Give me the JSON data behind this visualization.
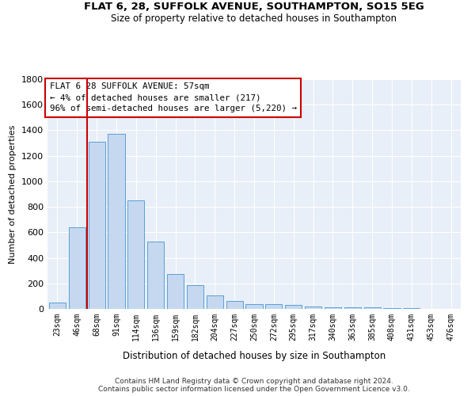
{
  "title1": "FLAT 6, 28, SUFFOLK AVENUE, SOUTHAMPTON, SO15 5EG",
  "title2": "Size of property relative to detached houses in Southampton",
  "xlabel": "Distribution of detached houses by size in Southampton",
  "ylabel": "Number of detached properties",
  "categories": [
    "23sqm",
    "46sqm",
    "68sqm",
    "91sqm",
    "114sqm",
    "136sqm",
    "159sqm",
    "182sqm",
    "204sqm",
    "227sqm",
    "250sqm",
    "272sqm",
    "295sqm",
    "317sqm",
    "340sqm",
    "363sqm",
    "385sqm",
    "408sqm",
    "431sqm",
    "453sqm",
    "476sqm"
  ],
  "values": [
    50,
    640,
    1310,
    1370,
    850,
    530,
    275,
    185,
    105,
    65,
    40,
    35,
    30,
    20,
    15,
    10,
    10,
    8,
    5,
    3,
    2
  ],
  "bar_color": "#c5d8f0",
  "bar_edge_color": "#5a9fd4",
  "vline_color": "#cc0000",
  "vline_x": 1.5,
  "annotation_text": "FLAT 6 28 SUFFOLK AVENUE: 57sqm\n← 4% of detached houses are smaller (217)\n96% of semi-detached houses are larger (5,220) →",
  "annotation_box_color": "#ffffff",
  "annotation_box_edge_color": "#cc0000",
  "ylim": [
    0,
    1800
  ],
  "yticks": [
    0,
    200,
    400,
    600,
    800,
    1000,
    1200,
    1400,
    1600,
    1800
  ],
  "bg_color": "#e8eff8",
  "grid_color": "#ffffff",
  "title1_fontsize": 9.5,
  "title2_fontsize": 8.5,
  "footer1": "Contains HM Land Registry data © Crown copyright and database right 2024.",
  "footer2": "Contains public sector information licensed under the Open Government Licence v3.0."
}
